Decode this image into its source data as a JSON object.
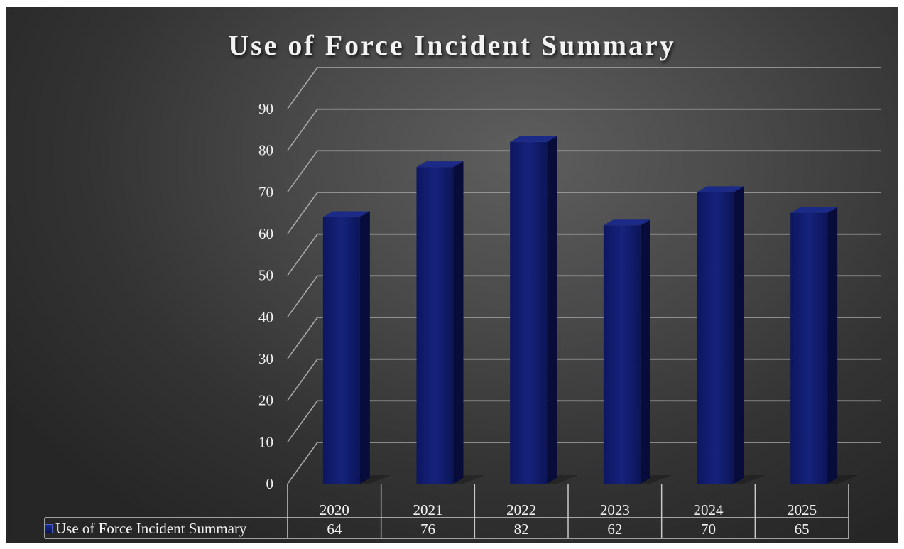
{
  "chart_data": {
    "type": "bar",
    "title": "Use of Force Incident Summary",
    "categories": [
      "2020",
      "2021",
      "2022",
      "2023",
      "2024",
      "2025"
    ],
    "series": [
      {
        "name": "Use of Force Incident Summary",
        "values": [
          64,
          76,
          82,
          62,
          70,
          65
        ]
      }
    ],
    "ylim": [
      0,
      90
    ],
    "yticks": [
      "0",
      "10",
      "20",
      "30",
      "40",
      "50",
      "60",
      "70",
      "80",
      "90"
    ],
    "grid": true,
    "data_table": true,
    "bar_color": "#0f1b6e",
    "background_color": "#3d3d3d"
  }
}
